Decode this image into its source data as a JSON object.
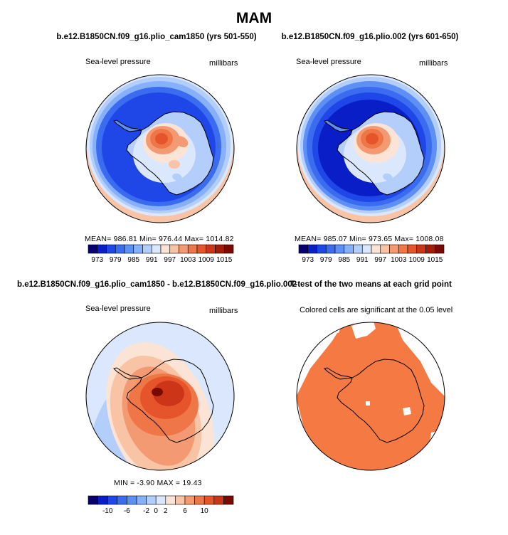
{
  "main_title": "MAM",
  "colors": {
    "palette": [
      "#08006e",
      "#0a1ec8",
      "#1f46e6",
      "#3b6cf0",
      "#5d8ff5",
      "#86b0f9",
      "#b3cefb",
      "#dbe7fc",
      "#fbe4d6",
      "#f9c3a6",
      "#f49a72",
      "#ef7647",
      "#e6542c",
      "#cc3517",
      "#a51b08",
      "#7a0a00"
    ],
    "diff_palette": [
      "#08006e",
      "#0a1ec8",
      "#1f46e6",
      "#3b6cf0",
      "#5d8ff5",
      "#86b0f9",
      "#b3cefb",
      "#dbe7fc",
      "#fbe4d6",
      "#f9c3a6",
      "#f49a72",
      "#ef7647",
      "#e6542c",
      "#cc3517",
      "#7a0a00"
    ],
    "significant": "#f47942",
    "coast": "#000000"
  },
  "panels": {
    "p1": {
      "title": "b.e12.B1850CN.f09_g16.plio_cam1850 (yrs 501-550)",
      "left_label": "Sea-level pressure",
      "right_label": "millibars",
      "stats": "MEAN=  986.81    Min=  976.44    Max=  1014.82"
    },
    "p2": {
      "title": "b.e12.B1850CN.f09_g16.plio.002 (yrs 601-650)",
      "left_label": "Sea-level pressure",
      "right_label": "millibars",
      "stats": "MEAN=  985.07    Min=  973.65    Max=  1008.08"
    },
    "p3": {
      "title": "b.e12.B1850CN.f09_g16.plio_cam1850 - b.e12.B1850CN.f09_g16.plio.002",
      "left_label": "Sea-level pressure",
      "right_label": "millibars",
      "stats": "MIN  =   -3.90  MAX  =   19.43"
    },
    "p4": {
      "title": "T-test of the two means at each grid point",
      "left_label": "Colored cells are significant at the 0.05 level"
    }
  },
  "chart_data": [
    {
      "type": "heatmap",
      "title": "b.e12.B1850CN.f09_g16.plio_cam1850 (yrs 501-550)",
      "variable": "Sea-level pressure",
      "units": "millibars",
      "projection": "south polar stereographic",
      "mean": 986.81,
      "min": 976.44,
      "max": 1014.82,
      "colorbar_ticks": [
        "973",
        "979",
        "985",
        "991",
        "997",
        "1003",
        "1009",
        "1015"
      ]
    },
    {
      "type": "heatmap",
      "title": "b.e12.B1850CN.f09_g16.plio.002 (yrs 601-650)",
      "variable": "Sea-level pressure",
      "units": "millibars",
      "projection": "south polar stereographic",
      "mean": 985.07,
      "min": 973.65,
      "max": 1008.08,
      "colorbar_ticks": [
        "973",
        "979",
        "985",
        "991",
        "997",
        "1003",
        "1009",
        "1015"
      ]
    },
    {
      "type": "heatmap",
      "title": "b.e12.B1850CN.f09_g16.plio_cam1850 - b.e12.B1850CN.f09_g16.plio.002",
      "variable": "Sea-level pressure",
      "units": "millibars",
      "projection": "south polar stereographic",
      "min": -3.9,
      "max": 19.43,
      "colorbar_ticks": [
        "-10",
        "-6",
        "-2",
        "0",
        "2",
        "6",
        "10"
      ]
    },
    {
      "type": "heatmap",
      "title": "T-test of the two means at each grid point",
      "subtitle": "Colored cells are significant at the 0.05 level",
      "projection": "south polar stereographic",
      "significance_level": 0.05
    }
  ]
}
